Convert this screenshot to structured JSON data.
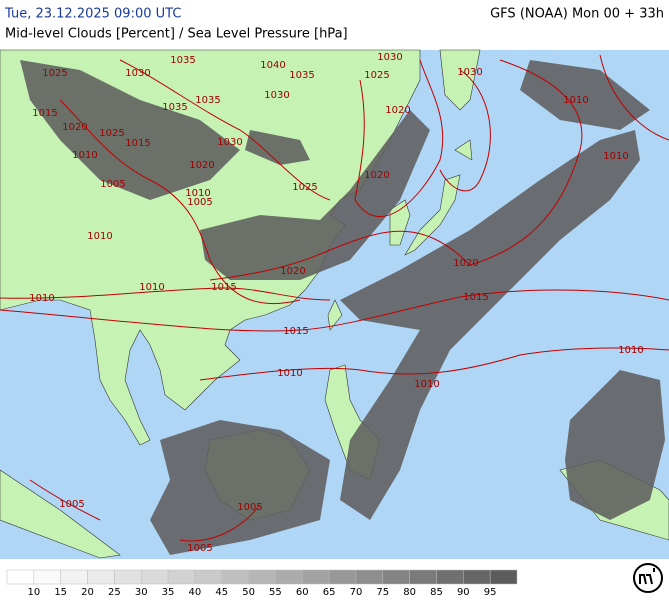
{
  "header": {
    "title": "Tue, 23.12.2025 09:00 UTC",
    "model": "GFS (NOAA) Mon 00 + 33h",
    "subtitle": "Mid-level Clouds [Percent] / Sea Level Pressure [hPa]"
  },
  "isobar_labels": [
    "1025",
    "1030",
    "1035",
    "1040",
    "1035",
    "1030",
    "1025",
    "1030",
    "1010",
    "1015",
    "1020",
    "1035",
    "1035",
    "1030",
    "1020",
    "1025",
    "1015",
    "1010",
    "1030",
    "1010",
    "1020",
    "1005",
    "1010",
    "1005",
    "1025",
    "1020",
    "1010",
    "1020",
    "1020",
    "1010",
    "1015",
    "1010",
    "1015",
    "1015",
    "1010",
    "1010",
    "1010",
    "1005",
    "1005",
    "1005"
  ],
  "legend": {
    "levels": [
      10,
      15,
      20,
      25,
      30,
      35,
      40,
      45,
      50,
      55,
      60,
      65,
      70,
      75,
      80,
      85,
      90,
      95
    ],
    "colors": [
      "#ffffff",
      "#fafafa",
      "#f2f2f2",
      "#eaeaea",
      "#e2e2e2",
      "#dadada",
      "#d2d2d2",
      "#cacaca",
      "#c0c0c0",
      "#b6b6b6",
      "#acacac",
      "#a2a2a2",
      "#989898",
      "#8e8e8e",
      "#848484",
      "#7a7a7a",
      "#707070",
      "#666666",
      "#5c5c5c"
    ]
  }
}
